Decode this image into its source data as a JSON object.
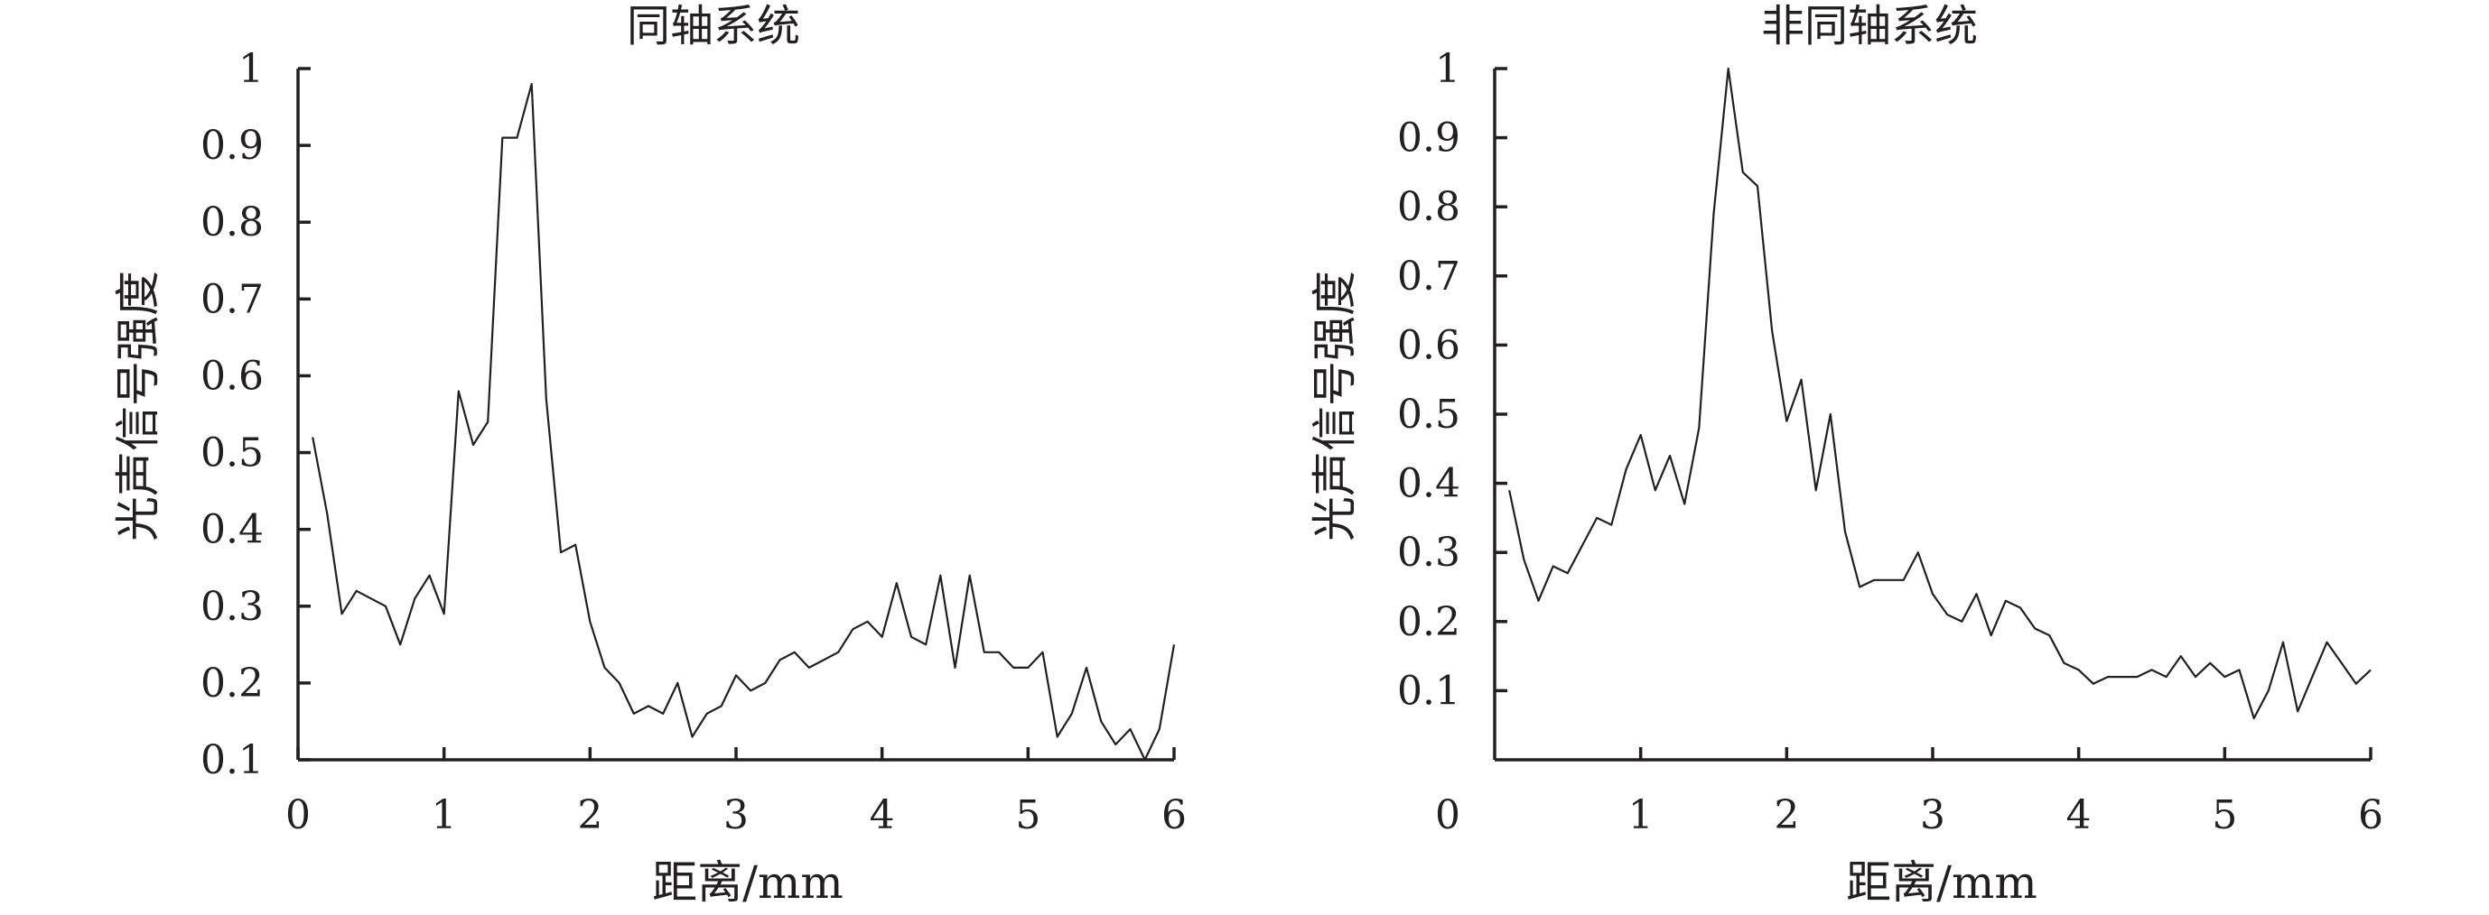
{
  "chart_data": [
    {
      "type": "line",
      "title": "同轴系统",
      "xlabel": "距离/mm",
      "ylabel": "光声信号强度",
      "xlim": [
        0,
        6
      ],
      "ylim": [
        0.1,
        1
      ],
      "xticks": [
        0,
        1,
        2,
        3,
        4,
        5,
        6
      ],
      "xtick_labels": [
        "0",
        "1",
        "2",
        "3",
        "4",
        "5",
        "6"
      ],
      "yticks": [
        0.1,
        0.2,
        0.3,
        0.4,
        0.5,
        0.6,
        0.7,
        0.8,
        0.9,
        1
      ],
      "ytick_labels": [
        "0.1",
        "0.2",
        "0.3",
        "0.4",
        "0.5",
        "0.6",
        "0.7",
        "0.8",
        "0.9",
        "1"
      ],
      "grid": false,
      "x": [
        0.1,
        0.2,
        0.3,
        0.4,
        0.5,
        0.6,
        0.7,
        0.8,
        0.9,
        1.0,
        1.1,
        1.2,
        1.3,
        1.4,
        1.5,
        1.6,
        1.7,
        1.8,
        1.9,
        2.0,
        2.1,
        2.2,
        2.3,
        2.4,
        2.5,
        2.6,
        2.7,
        2.8,
        2.9,
        3.0,
        3.1,
        3.2,
        3.3,
        3.4,
        3.5,
        3.6,
        3.7,
        3.8,
        3.9,
        4.0,
        4.1,
        4.2,
        4.3,
        4.4,
        4.5,
        4.6,
        4.7,
        4.8,
        4.9,
        5.0,
        5.1,
        5.2,
        5.3,
        5.4,
        5.5,
        5.6,
        5.7,
        5.8,
        5.9,
        6.0
      ],
      "y": [
        0.52,
        0.42,
        0.29,
        0.32,
        0.31,
        0.3,
        0.25,
        0.31,
        0.34,
        0.29,
        0.58,
        0.51,
        0.54,
        0.91,
        0.91,
        0.98,
        0.57,
        0.37,
        0.38,
        0.28,
        0.22,
        0.2,
        0.16,
        0.17,
        0.16,
        0.2,
        0.13,
        0.16,
        0.17,
        0.21,
        0.19,
        0.2,
        0.23,
        0.24,
        0.22,
        0.23,
        0.24,
        0.27,
        0.28,
        0.26,
        0.33,
        0.26,
        0.25,
        0.34,
        0.22,
        0.34,
        0.24,
        0.24,
        0.22,
        0.22,
        0.24,
        0.13,
        0.16,
        0.22,
        0.15,
        0.12,
        0.14,
        0.1,
        0.14,
        0.25
      ]
    },
    {
      "type": "line",
      "title": "非同轴系统",
      "xlabel": "距离/mm",
      "ylabel": "光声信号强度",
      "xlim": [
        0,
        6
      ],
      "ylim": [
        0,
        1
      ],
      "xticks": [
        0,
        1,
        2,
        3,
        4,
        5,
        6
      ],
      "xtick_labels": [
        "0",
        "1",
        "2",
        "3",
        "4",
        "5",
        "6"
      ],
      "yticks": [
        0.1,
        0.2,
        0.3,
        0.4,
        0.5,
        0.6,
        0.7,
        0.8,
        0.9,
        1
      ],
      "ytick_labels": [
        "0.1",
        "0.2",
        "0.3",
        "0.4",
        "0.5",
        "0.6",
        "0.7",
        "0.8",
        "0.9",
        "1"
      ],
      "grid": false,
      "x": [
        0.1,
        0.2,
        0.3,
        0.4,
        0.5,
        0.6,
        0.7,
        0.8,
        0.9,
        1.0,
        1.1,
        1.2,
        1.3,
        1.4,
        1.5,
        1.6,
        1.7,
        1.8,
        1.9,
        2.0,
        2.1,
        2.2,
        2.3,
        2.4,
        2.5,
        2.6,
        2.7,
        2.8,
        2.9,
        3.0,
        3.1,
        3.2,
        3.3,
        3.4,
        3.5,
        3.6,
        3.7,
        3.8,
        3.9,
        4.0,
        4.1,
        4.2,
        4.3,
        4.4,
        4.5,
        4.6,
        4.7,
        4.8,
        4.9,
        5.0,
        5.1,
        5.2,
        5.3,
        5.4,
        5.5,
        5.6,
        5.7,
        5.8,
        5.9,
        6.0
      ],
      "y": [
        0.39,
        0.29,
        0.23,
        0.28,
        0.27,
        0.31,
        0.35,
        0.34,
        0.42,
        0.47,
        0.39,
        0.44,
        0.37,
        0.48,
        0.79,
        1.0,
        0.85,
        0.83,
        0.62,
        0.49,
        0.55,
        0.39,
        0.5,
        0.33,
        0.25,
        0.26,
        0.26,
        0.26,
        0.3,
        0.24,
        0.21,
        0.2,
        0.24,
        0.18,
        0.23,
        0.22,
        0.19,
        0.18,
        0.14,
        0.13,
        0.11,
        0.12,
        0.12,
        0.12,
        0.13,
        0.12,
        0.15,
        0.12,
        0.14,
        0.12,
        0.13,
        0.06,
        0.1,
        0.17,
        0.07,
        0.12,
        0.17,
        0.14,
        0.11,
        0.13
      ]
    }
  ]
}
